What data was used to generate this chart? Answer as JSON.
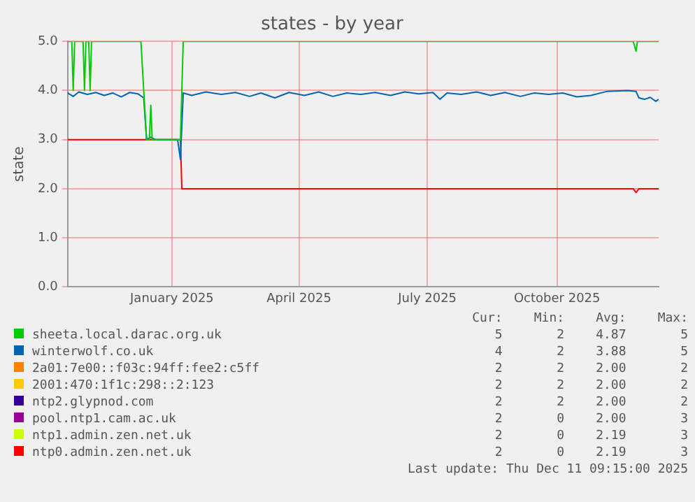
{
  "chart_data": {
    "type": "line",
    "title": "states - by year",
    "ylabel": "state",
    "marker": "none",
    "grid": true,
    "legend": "bottom",
    "xlim": [
      "2024-10-19",
      "2025-12-12"
    ],
    "xticks": [
      {
        "value": "2025-01-01",
        "label": "January 2025"
      },
      {
        "value": "2025-04-01",
        "label": "April 2025"
      },
      {
        "value": "2025-07-01",
        "label": "July 2025"
      },
      {
        "value": "2025-10-01",
        "label": "October 2025"
      }
    ],
    "ylim": [
      0,
      5
    ],
    "yticks": [
      {
        "value": 0,
        "label": "0.0"
      },
      {
        "value": 1,
        "label": "1.0"
      },
      {
        "value": 2,
        "label": "2.0"
      },
      {
        "value": 3,
        "label": "3.0"
      },
      {
        "value": 4,
        "label": "4.0"
      },
      {
        "value": 5,
        "label": "5.0"
      }
    ],
    "series": [
      {
        "name": "sheeta.local.darac.org.uk",
        "color": "#00cc00",
        "x": [
          "2024-10-19",
          "2024-10-22",
          "2024-10-23",
          "2024-10-24",
          "2024-10-30",
          "2024-10-31",
          "2024-11-01",
          "2024-11-03",
          "2024-11-04",
          "2024-11-05",
          "2024-12-10",
          "2024-12-14",
          "2024-12-16",
          "2024-12-17",
          "2024-12-18",
          "2025-01-07",
          "2025-01-09",
          "2025-11-24",
          "2025-11-26",
          "2025-11-27",
          "2025-12-12"
        ],
        "values": [
          5,
          5,
          4,
          5,
          5,
          4,
          5,
          5,
          4,
          5,
          5,
          3,
          3,
          3.7,
          3,
          3,
          5,
          5,
          4.8,
          5,
          5
        ]
      },
      {
        "name": "winterwolf.co.uk",
        "color": "#0066b3",
        "x": [
          "2024-10-19",
          "2024-10-23",
          "2024-10-27",
          "2024-11-02",
          "2024-11-08",
          "2024-11-14",
          "2024-11-20",
          "2024-11-26",
          "2024-12-02",
          "2024-12-08",
          "2024-12-12",
          "2024-12-14",
          "2024-12-17",
          "2024-12-20",
          "2025-01-05",
          "2025-01-07",
          "2025-01-09",
          "2025-01-15",
          "2025-01-25",
          "2025-02-05",
          "2025-02-15",
          "2025-02-25",
          "2025-03-05",
          "2025-03-15",
          "2025-03-25",
          "2025-04-05",
          "2025-04-15",
          "2025-04-25",
          "2025-05-05",
          "2025-05-15",
          "2025-05-25",
          "2025-06-05",
          "2025-06-15",
          "2025-06-25",
          "2025-07-05",
          "2025-07-10",
          "2025-07-15",
          "2025-07-25",
          "2025-08-05",
          "2025-08-15",
          "2025-08-25",
          "2025-09-05",
          "2025-09-15",
          "2025-09-25",
          "2025-10-05",
          "2025-10-15",
          "2025-10-25",
          "2025-11-05",
          "2025-11-20",
          "2025-11-26",
          "2025-11-28",
          "2025-12-02",
          "2025-12-06",
          "2025-12-10",
          "2025-12-12"
        ],
        "values": [
          3.95,
          3.88,
          3.97,
          3.92,
          3.96,
          3.9,
          3.95,
          3.87,
          3.96,
          3.93,
          3.85,
          3.0,
          3.05,
          3.0,
          3.0,
          2.6,
          3.95,
          3.9,
          3.97,
          3.92,
          3.96,
          3.88,
          3.95,
          3.85,
          3.96,
          3.9,
          3.97,
          3.88,
          3.95,
          3.92,
          3.96,
          3.9,
          3.97,
          3.93,
          3.96,
          3.82,
          3.95,
          3.92,
          3.97,
          3.9,
          3.96,
          3.88,
          3.95,
          3.92,
          3.95,
          3.87,
          3.9,
          3.98,
          4.0,
          3.98,
          3.85,
          3.82,
          3.86,
          3.78,
          3.82
        ]
      },
      {
        "name": "2a01:7e00::f03c:94ff:fee2:c5ff",
        "color": "#ff8000"
      },
      {
        "name": "2001:470:1f1c:298::2:123",
        "color": "#ffcc00"
      },
      {
        "name": "ntp2.glypnod.com",
        "color": "#330099"
      },
      {
        "name": "pool.ntp1.cam.ac.uk",
        "color": "#990099"
      },
      {
        "name": "ntp1.admin.zen.net.uk",
        "color": "#ccff00"
      },
      {
        "name": "ntp0.admin.zen.net.uk",
        "color": "#ff0000",
        "x": [
          "2024-10-19",
          "2025-01-07",
          "2025-01-08",
          "2025-11-24",
          "2025-11-26",
          "2025-11-28",
          "2025-12-12"
        ],
        "values": [
          3,
          3,
          2,
          2,
          1.92,
          2,
          2
        ]
      }
    ],
    "annotations": [
      "Cur:",
      "Min:",
      "Avg:",
      "Max:",
      "5",
      "2",
      "4.87",
      "5",
      "4",
      "2",
      "3.88",
      "5",
      "2",
      "2",
      "2.00",
      "2",
      "2",
      "2",
      "2.00",
      "2",
      "2",
      "2",
      "2.00",
      "2",
      "2",
      "0",
      "2.00",
      "3",
      "2",
      "0",
      "2.19",
      "3",
      "2",
      "0",
      "2.19",
      "3",
      "Last update: Thu Dec 11 09:15:00 2025"
    ]
  }
}
